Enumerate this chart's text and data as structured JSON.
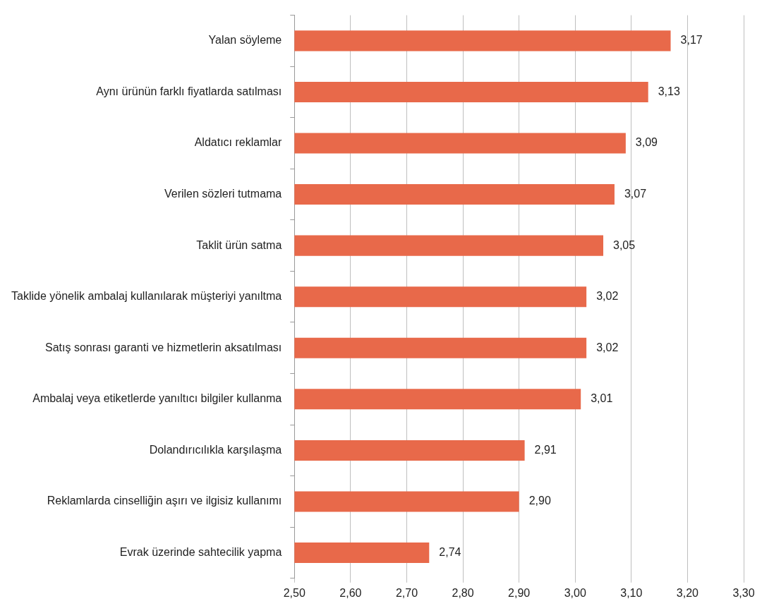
{
  "chart_data": {
    "type": "bar",
    "orientation": "horizontal",
    "categories": [
      "Yalan söyleme",
      "Aynı ürünün farklı fiyatlarda satılması",
      "Aldatıcı reklamlar",
      "Verilen sözleri tutmama",
      "Taklit ürün satma",
      "Taklide yönelik ambalaj kullanılarak müşteriyi yanıltma",
      "Satış sonrası garanti ve hizmetlerin aksatılması",
      "Ambalaj veya etiketlerde yanıltıcı bilgiler kullanma",
      "Dolandırıcılıkla karşılaşma",
      "Reklamlarda cinselliğin aşırı ve ilgisiz kullanımı",
      "Evrak üzerinde sahtecilik yapma"
    ],
    "values": [
      3.17,
      3.13,
      3.09,
      3.07,
      3.05,
      3.02,
      3.02,
      3.01,
      2.91,
      2.9,
      2.74
    ],
    "value_labels": [
      "3,17",
      "3,13",
      "3,09",
      "3,07",
      "3,05",
      "3,02",
      "3,02",
      "3,01",
      "2,91",
      "2,90",
      "2,74"
    ],
    "color": "#e8694a",
    "xlim": [
      2.5,
      3.3
    ],
    "xticks": [
      {
        "value": 2.5,
        "label": "2,50"
      },
      {
        "value": 2.6,
        "label": "2,60"
      },
      {
        "value": 2.7,
        "label": "2,70"
      },
      {
        "value": 2.8,
        "label": "2,80"
      },
      {
        "value": 2.9,
        "label": "2,90"
      },
      {
        "value": 3.0,
        "label": "3,00"
      },
      {
        "value": 3.1,
        "label": "3,10"
      },
      {
        "value": 3.2,
        "label": "3,20"
      },
      {
        "value": 3.3,
        "label": "3,30"
      }
    ],
    "grid": "x",
    "legend": false
  }
}
